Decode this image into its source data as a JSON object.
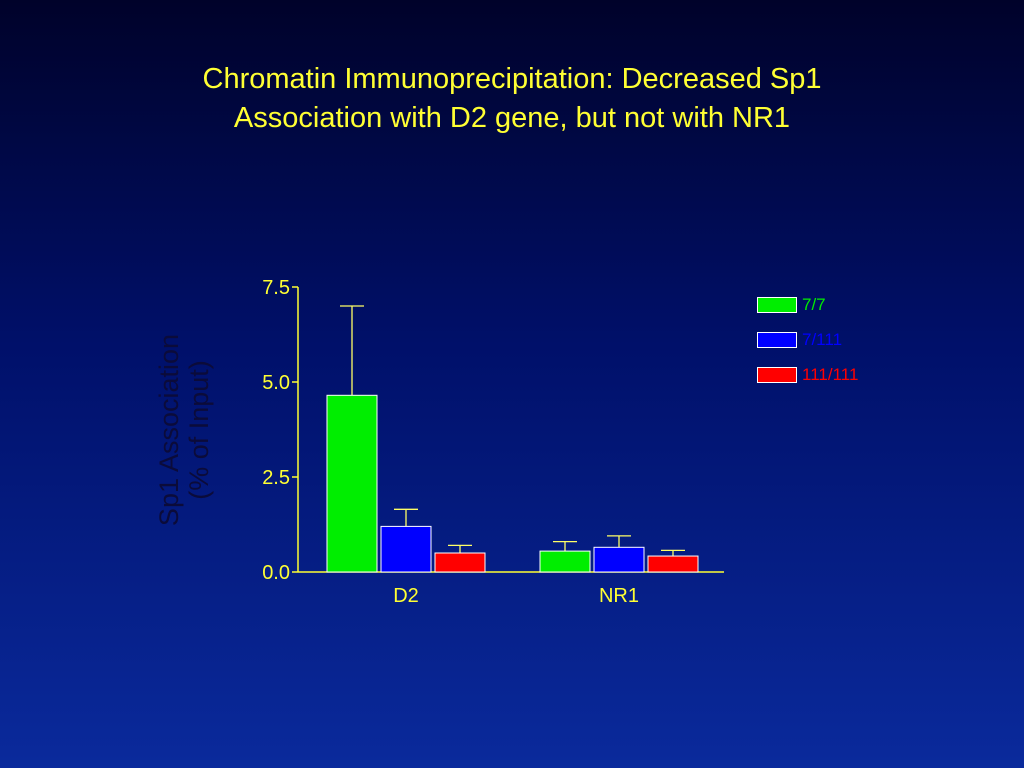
{
  "slide": {
    "title_line1": "Chromatin Immunoprecipitation: Decreased Sp1",
    "title_line2": "Association with D2 gene, but not with NR1"
  },
  "colors": {
    "title": "#ffff33",
    "axis": "#ffff33",
    "error_bar": "#ffff66"
  },
  "chart_data": {
    "type": "bar",
    "ylabel_line1": "Sp1 Association",
    "ylabel_line2": "(% of Input)",
    "ylim": [
      0,
      7.5
    ],
    "yticks": [
      "0.0",
      "2.5",
      "5.0",
      "7.5"
    ],
    "ytick_values": [
      0,
      2.5,
      5,
      7.5
    ],
    "categories": [
      "D2",
      "NR1"
    ],
    "series": [
      {
        "name": "7/7",
        "color": "#00ee00",
        "values": [
          4.65,
          0.55
        ],
        "errors": [
          2.35,
          0.25
        ]
      },
      {
        "name": "7/111",
        "color": "#0000ff",
        "values": [
          1.2,
          0.65
        ],
        "errors": [
          0.45,
          0.3
        ]
      },
      {
        "name": "111/111",
        "color": "#ff0000",
        "values": [
          0.5,
          0.42
        ],
        "errors": [
          0.2,
          0.15
        ]
      }
    ],
    "legend_position": "right"
  }
}
